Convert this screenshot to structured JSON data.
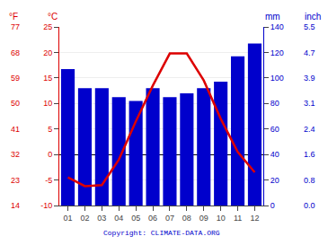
{
  "chart_data": {
    "type": "bar",
    "categories": [
      "01",
      "02",
      "03",
      "04",
      "05",
      "06",
      "07",
      "08",
      "09",
      "10",
      "11",
      "12"
    ],
    "series": [
      {
        "type": "bar",
        "color": "#0000cc",
        "axis": "y2",
        "values": [
          107,
          92,
          92,
          85,
          82,
          92,
          85,
          88,
          92,
          97,
          117,
          127
        ]
      },
      {
        "type": "line",
        "color": "#dd0000",
        "values": [
          -4.5,
          -6.2,
          -6.0,
          -1.0,
          6.5,
          13.5,
          19.8,
          19.8,
          14.5,
          7.0,
          0.5,
          -3.5
        ]
      }
    ],
    "ylim": [
      -10,
      25
    ],
    "yticks": [
      -10,
      -5,
      0,
      5,
      10,
      15,
      20,
      25
    ],
    "y2lim": [
      0,
      140
    ],
    "y2ticks": [
      0,
      20,
      40,
      60,
      80,
      100,
      120,
      140
    ],
    "ylabel": "°C",
    "y2label": "mm",
    "grid": true,
    "annotations": [
      {
        "text": "°F",
        "axis": "y",
        "ticks": [
          {
            "value": -10,
            "label": "14"
          },
          {
            "value": -5,
            "label": "23"
          },
          {
            "value": 0,
            "label": "32"
          },
          {
            "value": 5,
            "label": "41"
          },
          {
            "value": 10,
            "label": "50"
          },
          {
            "value": 15,
            "label": "59"
          },
          {
            "value": 20,
            "label": "68"
          },
          {
            "value": 25,
            "label": "77"
          }
        ]
      },
      {
        "text": "inch",
        "axis": "y2",
        "ticks": [
          {
            "value": 0,
            "label": "0.0"
          },
          {
            "value": 20,
            "label": "0.8"
          },
          {
            "value": 40,
            "label": "1.6"
          },
          {
            "value": 60,
            "label": "2.4"
          },
          {
            "value": 80,
            "label": "3.1"
          },
          {
            "value": 100,
            "label": "3.9"
          },
          {
            "value": 120,
            "label": "4.7"
          },
          {
            "value": 140,
            "label": "5.5"
          }
        ]
      },
      {
        "text": "Copyright: CLIMATE-DATA.ORG"
      }
    ]
  }
}
